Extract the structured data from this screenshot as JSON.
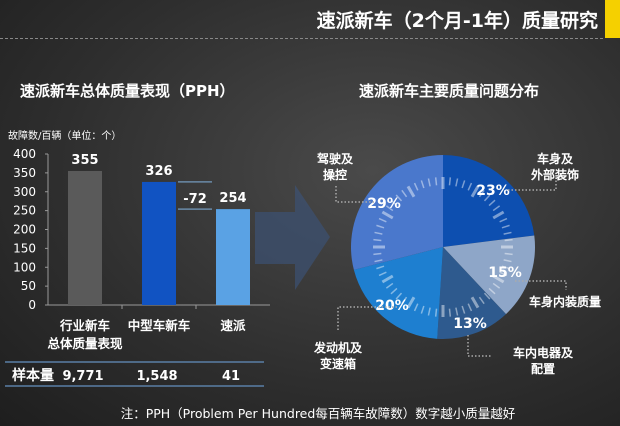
{
  "title": "速派新车（2个月-1年）质量研究",
  "accent_color": "#f5d000",
  "chart_data": [
    {
      "type": "bar",
      "title": "速派新车总体质量表现（PPH）",
      "ylabel": "故障数/百辆（单位：个）",
      "ylim": [
        0,
        400
      ],
      "yticks": [
        "0",
        "50",
        "100",
        "150",
        "200",
        "250",
        "300",
        "350",
        "400"
      ],
      "categories": [
        [
          "行业新车",
          "总体质量表现"
        ],
        [
          "中型车新车"
        ],
        [
          "速派"
        ]
      ],
      "values": [
        355,
        326,
        254
      ],
      "value_labels": [
        "355",
        "326",
        "254"
      ],
      "colors": [
        "#5a5a5a",
        "#1153c2",
        "#5aa2e4"
      ],
      "difference_label": "-72",
      "sample_row": {
        "label": "样本量",
        "values": [
          "9,771",
          "1,548",
          "41"
        ]
      }
    },
    {
      "type": "pie",
      "title": "速派新车主要质量问题分布",
      "slices": [
        {
          "label": "车身及外部装饰",
          "lines": [
            "车身及",
            "外部装饰"
          ],
          "value": 23,
          "value_label": "23%",
          "color": "#0d4fb0"
        },
        {
          "label": "车身内装质量",
          "lines": [
            "车身内装质量"
          ],
          "value": 15,
          "value_label": "15%",
          "color": "#8ea6c8"
        },
        {
          "label": "车内电器及配置",
          "lines": [
            "车内电器及",
            "配置"
          ],
          "value": 13,
          "value_label": "13%",
          "color": "#2e5a8e"
        },
        {
          "label": "发动机及变速箱",
          "lines": [
            "发动机及",
            "变速箱"
          ],
          "value": 20,
          "value_label": "20%",
          "color": "#1e7fd0"
        },
        {
          "label": "驾驶及操控",
          "lines": [
            "驾驶及",
            "操控"
          ],
          "value": 29,
          "value_label": "29%",
          "color": "#4a78cc"
        }
      ]
    }
  ],
  "note": "注：PPH（Problem Per Hundred每百辆车故障数）数字越小质量越好"
}
